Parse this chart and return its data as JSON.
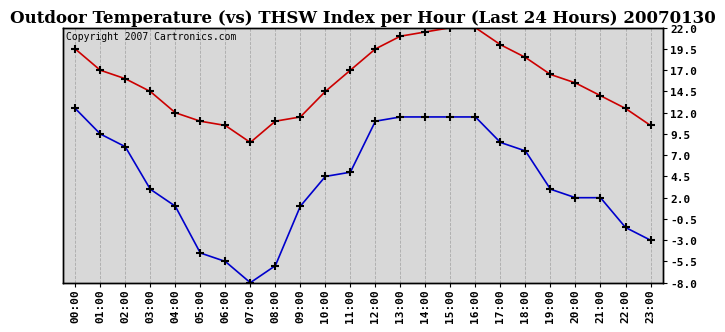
{
  "title": "Outdoor Temperature (vs) THSW Index per Hour (Last 24 Hours) 20070130",
  "copyright_text": "Copyright 2007 Cartronics.com",
  "hours": [
    "00:00",
    "01:00",
    "02:00",
    "03:00",
    "04:00",
    "05:00",
    "06:00",
    "07:00",
    "08:00",
    "09:00",
    "10:00",
    "11:00",
    "12:00",
    "13:00",
    "14:00",
    "15:00",
    "16:00",
    "17:00",
    "18:00",
    "19:00",
    "20:00",
    "21:00",
    "22:00",
    "23:00"
  ],
  "thsw": [
    19.5,
    17.0,
    16.0,
    14.5,
    12.0,
    11.0,
    10.5,
    8.5,
    11.0,
    11.5,
    14.5,
    17.0,
    19.5,
    21.0,
    21.5,
    22.0,
    22.0,
    20.0,
    18.5,
    16.5,
    15.5,
    14.0,
    12.5,
    10.5
  ],
  "temp": [
    12.5,
    9.5,
    8.0,
    3.0,
    1.0,
    -4.5,
    -5.5,
    -8.0,
    -6.0,
    1.0,
    4.5,
    5.0,
    11.0,
    11.5,
    11.5,
    11.5,
    11.5,
    8.5,
    7.5,
    3.0,
    2.0,
    2.0,
    -1.5,
    -3.0
  ],
  "thsw_color": "#cc0000",
  "temp_color": "#0000cc",
  "outer_bg_color": "#ffffff",
  "plot_bg_color": "#d8d8d8",
  "grid_color": "#aaaaaa",
  "ylim": [
    -8.0,
    22.0
  ],
  "yticks_right": [
    -8.0,
    -5.5,
    -3.0,
    -0.5,
    2.0,
    4.5,
    7.0,
    9.5,
    12.0,
    14.5,
    17.0,
    19.5,
    22.0
  ],
  "title_fontsize": 12,
  "axis_fontsize": 8,
  "copyright_fontsize": 7
}
